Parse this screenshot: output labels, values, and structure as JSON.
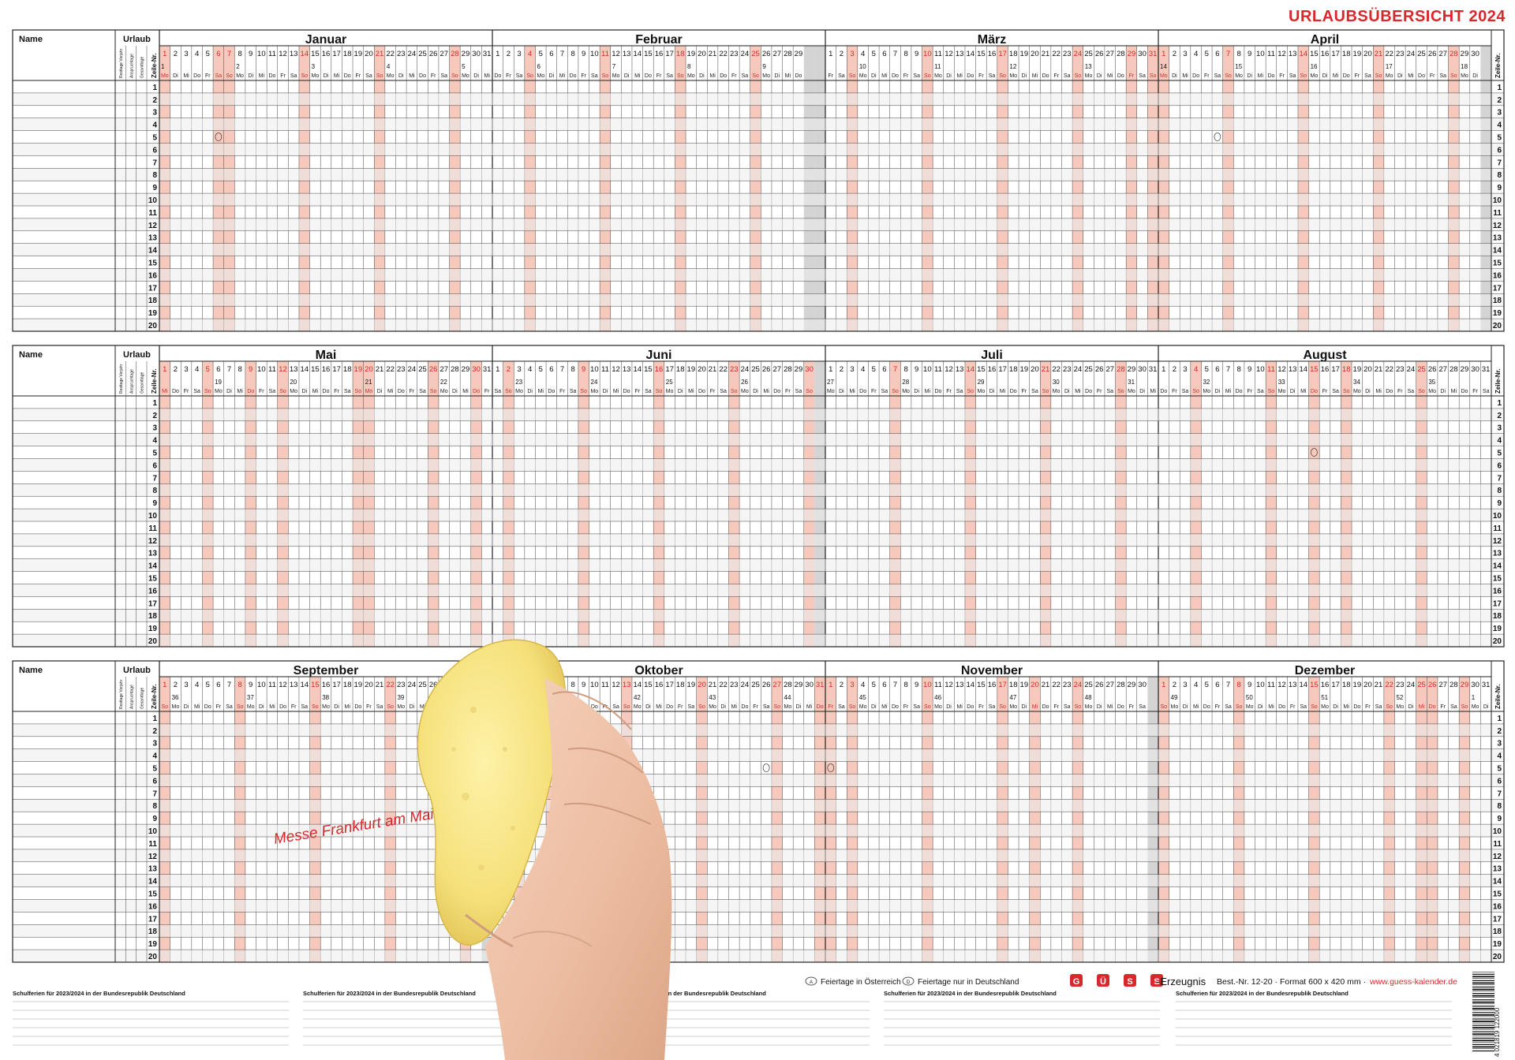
{
  "poster": {
    "title": "URLAUBSÜBERSICHT 2024"
  },
  "header": {
    "name_label": "Name",
    "urlaub_label": "Urlaub",
    "sub_cols": [
      "Resttage Vorjahr",
      "Anspruchtage",
      "Gesamttage"
    ],
    "zeile_label": "Zeile-Nr."
  },
  "weekday_abbr": [
    "Mo",
    "Di",
    "Mi",
    "Do",
    "Fr",
    "Sa",
    "So"
  ],
  "year": 2024,
  "months": [
    {
      "name": "Januar",
      "days": 31,
      "start_weekday": 0,
      "holidays": [
        1,
        6
      ],
      "marked": [
        6
      ]
    },
    {
      "name": "Februar",
      "days": 29,
      "start_weekday": 3,
      "holidays": [],
      "marked": []
    },
    {
      "name": "März",
      "days": 31,
      "start_weekday": 4,
      "holidays": [
        29,
        31
      ],
      "marked": []
    },
    {
      "name": "April",
      "days": 30,
      "start_weekday": 0,
      "holidays": [
        1
      ],
      "marked": [
        6
      ]
    },
    {
      "name": "Mai",
      "days": 31,
      "start_weekday": 2,
      "holidays": [
        1,
        9,
        20,
        30
      ],
      "marked": []
    },
    {
      "name": "Juni",
      "days": 30,
      "start_weekday": 5,
      "holidays": [],
      "marked": []
    },
    {
      "name": "Juli",
      "days": 31,
      "start_weekday": 0,
      "holidays": [],
      "marked": []
    },
    {
      "name": "August",
      "days": 31,
      "start_weekday": 3,
      "holidays": [
        15
      ],
      "marked": [
        15
      ]
    },
    {
      "name": "September",
      "days": 30,
      "start_weekday": 6,
      "holidays": [],
      "marked": []
    },
    {
      "name": "Oktober",
      "days": 31,
      "start_weekday": 1,
      "holidays": [
        3,
        31
      ],
      "marked": [
        3,
        26
      ]
    },
    {
      "name": "November",
      "days": 30,
      "start_weekday": 4,
      "holidays": [
        1,
        20
      ],
      "marked": [
        1
      ]
    },
    {
      "name": "Dezember",
      "days": 31,
      "start_weekday": 6,
      "holidays": [
        25,
        26
      ],
      "marked": []
    }
  ],
  "rows_per_block": 20,
  "colors": {
    "sunday": "#f7c9bc",
    "sunday_text": "#d8282c",
    "grid": "#444444",
    "alt_row": "#ececec",
    "brand_red": "#d8282c",
    "shaded_unused": "#d4d4d4"
  },
  "legend": {
    "austria": "Feiertage in Österreich",
    "austria_symbol": "A",
    "germany": "Feiertage nur in Deutschland",
    "germany_symbol": "D"
  },
  "footer": {
    "brand_suffix": "-Erzeugnis",
    "brand_letters": [
      "G",
      "Ü",
      "S",
      "S"
    ],
    "order_info": "Best.-Nr. 12-20 · Format 600 x 420 mm ·",
    "website": "www.guess-kalender.de",
    "schoolhol_title": "Schulferien für 2023/2024 in der Bundesrepublik Deutschland",
    "barcode_digits": "4 021819 122000"
  },
  "handwritten_note": "Messe Frankfurt am Main"
}
